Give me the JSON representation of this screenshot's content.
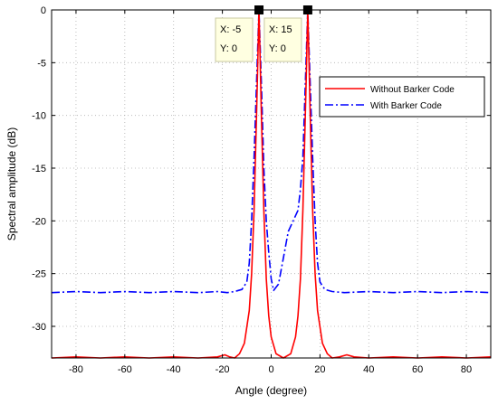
{
  "chart_data": {
    "type": "line",
    "title": "",
    "xlabel": "Angle (degree)",
    "ylabel": "Spectral amplitude (dB)",
    "xlim": [
      -90,
      90
    ],
    "ylim": [
      -33,
      0
    ],
    "xticks": [
      -80,
      -60,
      -40,
      -20,
      0,
      20,
      40,
      60,
      80
    ],
    "yticks": [
      0,
      -5,
      -10,
      -15,
      -20,
      -25,
      -30
    ],
    "grid": true,
    "legend_position": "top-right",
    "series": [
      {
        "name": "Without Barker Code",
        "color": "#ff0000",
        "style": "solid",
        "points": [
          [
            -90,
            -33.0
          ],
          [
            -80,
            -32.9
          ],
          [
            -70,
            -33.0
          ],
          [
            -60,
            -32.9
          ],
          [
            -50,
            -33.0
          ],
          [
            -40,
            -32.9
          ],
          [
            -30,
            -33.0
          ],
          [
            -22,
            -32.9
          ],
          [
            -19,
            -32.7
          ],
          [
            -17,
            -32.9
          ],
          [
            -15,
            -33.0
          ],
          [
            -13,
            -32.6
          ],
          [
            -11,
            -31.6
          ],
          [
            -9,
            -28.5
          ],
          [
            -8,
            -25.0
          ],
          [
            -7,
            -19.0
          ],
          [
            -6,
            -10.0
          ],
          [
            -5.5,
            -5.0
          ],
          [
            -5,
            0.0
          ],
          [
            -4.5,
            -5.0
          ],
          [
            -4,
            -10.0
          ],
          [
            -3,
            -19.0
          ],
          [
            -2,
            -25.5
          ],
          [
            -1,
            -29.0
          ],
          [
            0,
            -31.0
          ],
          [
            2,
            -32.6
          ],
          [
            5,
            -33.0
          ],
          [
            8,
            -32.6
          ],
          [
            10,
            -31.0
          ],
          [
            11,
            -29.0
          ],
          [
            12,
            -25.5
          ],
          [
            13,
            -19.0
          ],
          [
            14,
            -10.0
          ],
          [
            14.5,
            -5.0
          ],
          [
            15,
            0.0
          ],
          [
            15.5,
            -5.0
          ],
          [
            16,
            -10.0
          ],
          [
            17,
            -19.0
          ],
          [
            18,
            -25.0
          ],
          [
            19,
            -28.5
          ],
          [
            21,
            -31.6
          ],
          [
            23,
            -32.6
          ],
          [
            25,
            -33.0
          ],
          [
            28,
            -32.9
          ],
          [
            31,
            -32.7
          ],
          [
            34,
            -32.9
          ],
          [
            40,
            -33.0
          ],
          [
            50,
            -32.9
          ],
          [
            60,
            -33.0
          ],
          [
            70,
            -32.9
          ],
          [
            80,
            -33.0
          ],
          [
            90,
            -32.9
          ]
        ]
      },
      {
        "name": "With Barker Code",
        "color": "#0000ff",
        "style": "dashdot",
        "points": [
          [
            -90,
            -26.8
          ],
          [
            -80,
            -26.7
          ],
          [
            -70,
            -26.8
          ],
          [
            -60,
            -26.7
          ],
          [
            -50,
            -26.8
          ],
          [
            -40,
            -26.7
          ],
          [
            -30,
            -26.8
          ],
          [
            -22,
            -26.7
          ],
          [
            -18,
            -26.8
          ],
          [
            -15,
            -26.7
          ],
          [
            -12,
            -26.5
          ],
          [
            -10,
            -25.8
          ],
          [
            -9,
            -24.0
          ],
          [
            -8,
            -20.0
          ],
          [
            -7,
            -14.0
          ],
          [
            -6,
            -7.0
          ],
          [
            -5,
            0.0
          ],
          [
            -4,
            -7.0
          ],
          [
            -3,
            -15.0
          ],
          [
            -2,
            -20.0
          ],
          [
            -1,
            -23.0
          ],
          [
            0,
            -25.5
          ],
          [
            1,
            -26.6
          ],
          [
            3,
            -26.0
          ],
          [
            5,
            -23.5
          ],
          [
            7,
            -21.0
          ],
          [
            9,
            -20.0
          ],
          [
            11,
            -19.0
          ],
          [
            12,
            -17.0
          ],
          [
            13,
            -14.0
          ],
          [
            14,
            -7.0
          ],
          [
            15,
            0.0
          ],
          [
            16,
            -7.0
          ],
          [
            17,
            -14.0
          ],
          [
            18,
            -20.0
          ],
          [
            19,
            -24.0
          ],
          [
            20,
            -25.8
          ],
          [
            22,
            -26.5
          ],
          [
            25,
            -26.7
          ],
          [
            30,
            -26.8
          ],
          [
            40,
            -26.7
          ],
          [
            50,
            -26.8
          ],
          [
            60,
            -26.7
          ],
          [
            70,
            -26.8
          ],
          [
            80,
            -26.7
          ],
          [
            90,
            -26.8
          ]
        ]
      }
    ],
    "annotations": [
      {
        "x": -5,
        "y": 0,
        "x_text": "X: -5",
        "y_text": "Y: 0"
      },
      {
        "x": 15,
        "y": 0,
        "x_text": "X: 15",
        "y_text": "Y: 0"
      }
    ]
  }
}
